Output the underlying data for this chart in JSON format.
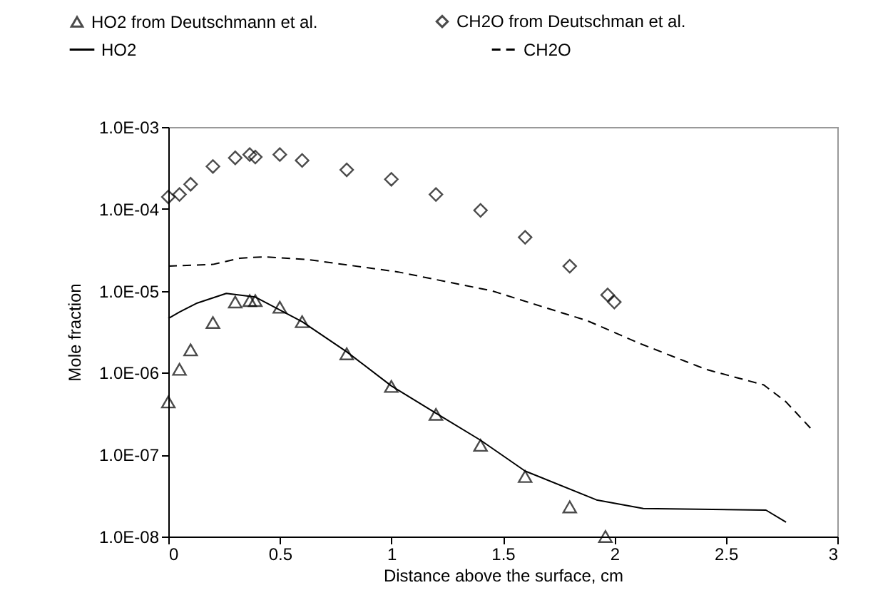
{
  "chart_data": {
    "type": "line",
    "xlabel": "Distance above the surface, cm",
    "ylabel": "Mole fraction",
    "log": "y",
    "legend": "top",
    "xlim": [
      0,
      3
    ],
    "xticks": [
      0,
      0.5,
      1,
      1.5,
      2,
      2.5,
      3
    ],
    "ylim": [
      1e-08,
      0.001
    ],
    "yticks": [
      {
        "value": 1e-08,
        "label": "1.0E-08"
      },
      {
        "value": 1e-07,
        "label": "1.0E-07"
      },
      {
        "value": 1e-06,
        "label": "1.0E-06"
      },
      {
        "value": 1e-05,
        "label": "1.0E-05"
      },
      {
        "value": 0.0001,
        "label": "1.0E-04"
      },
      {
        "value": 0.001,
        "label": "1.0E-03"
      }
    ],
    "series": [
      {
        "name": "HO2 from Deutschmann et al.",
        "type": "scatter",
        "marker": "triangle",
        "color": "#000000",
        "x": [
          0,
          0.05,
          0.1,
          0.2,
          0.3,
          0.365,
          0.39,
          0.5,
          0.6,
          0.8,
          1.0,
          1.2,
          1.4,
          1.6,
          1.8,
          1.96
        ],
        "values": [
          4.4e-07,
          1.1e-06,
          1.9e-06,
          4.1e-06,
          7.3e-06,
          7.6e-06,
          7.6e-06,
          6.3e-06,
          4.2e-06,
          1.7e-06,
          6.8e-07,
          3.1e-07,
          1.3e-07,
          5.4e-08,
          2.3e-08,
          1e-08
        ]
      },
      {
        "name": "CH2O from Deutschman et al.",
        "type": "scatter",
        "marker": "diamond",
        "color": "#000000",
        "x": [
          0,
          0.05,
          0.1,
          0.2,
          0.3,
          0.365,
          0.39,
          0.5,
          0.6,
          0.8,
          1.0,
          1.2,
          1.4,
          1.6,
          1.8,
          1.97,
          2.0
        ],
        "values": [
          0.00014,
          0.00015,
          0.0002,
          0.00033,
          0.00042,
          0.00046,
          0.00043,
          0.00046,
          0.00039,
          0.0003,
          0.00023,
          0.00015,
          9.6e-05,
          4.5e-05,
          2e-05,
          8.9e-06,
          7.3e-06
        ]
      },
      {
        "name": "HO2",
        "marker": "none",
        "line_style": "solid",
        "color": "#000000",
        "x": [
          0,
          0.05,
          0.13,
          0.26,
          0.39,
          0.6,
          0.8,
          1.0,
          1.2,
          1.4,
          1.6,
          1.92,
          2.13,
          2.68,
          2.77
        ],
        "values": [
          4.6e-06,
          5.5e-06,
          7.1e-06,
          9.3e-06,
          8.4e-06,
          4.2e-06,
          1.8e-06,
          6.9e-07,
          3.2e-07,
          1.5e-07,
          6.3e-08,
          2.8e-08,
          2.2e-08,
          2.1e-08,
          1.5e-08
        ]
      },
      {
        "name": "CH2O",
        "marker": "none",
        "line_style": "dashed",
        "color": "#000000",
        "x": [
          0,
          0.2,
          0.32,
          0.43,
          0.63,
          1.03,
          1.45,
          1.88,
          2.11,
          2.41,
          2.67,
          2.77,
          2.88
        ],
        "values": [
          2e-05,
          2.1e-05,
          2.5e-05,
          2.6e-05,
          2.4e-05,
          1.7e-05,
          1e-05,
          4.3e-06,
          2.3e-06,
          1.1e-06,
          7.1e-07,
          4.4e-07,
          2.1e-07
        ]
      }
    ]
  }
}
